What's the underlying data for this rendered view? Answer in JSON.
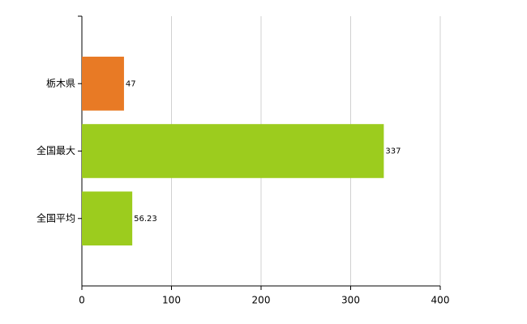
{
  "chart_data": {
    "type": "bar",
    "orientation": "horizontal",
    "categories": [
      "栃木県",
      "全国最大",
      "全国平均"
    ],
    "values": [
      47,
      337,
      56.23
    ],
    "colors": [
      "#e87a25",
      "#9ccc1e",
      "#9ccc1e"
    ],
    "xlim": [
      0,
      400
    ],
    "xticks": [
      0,
      100,
      200,
      300,
      400
    ],
    "grid": true
  }
}
